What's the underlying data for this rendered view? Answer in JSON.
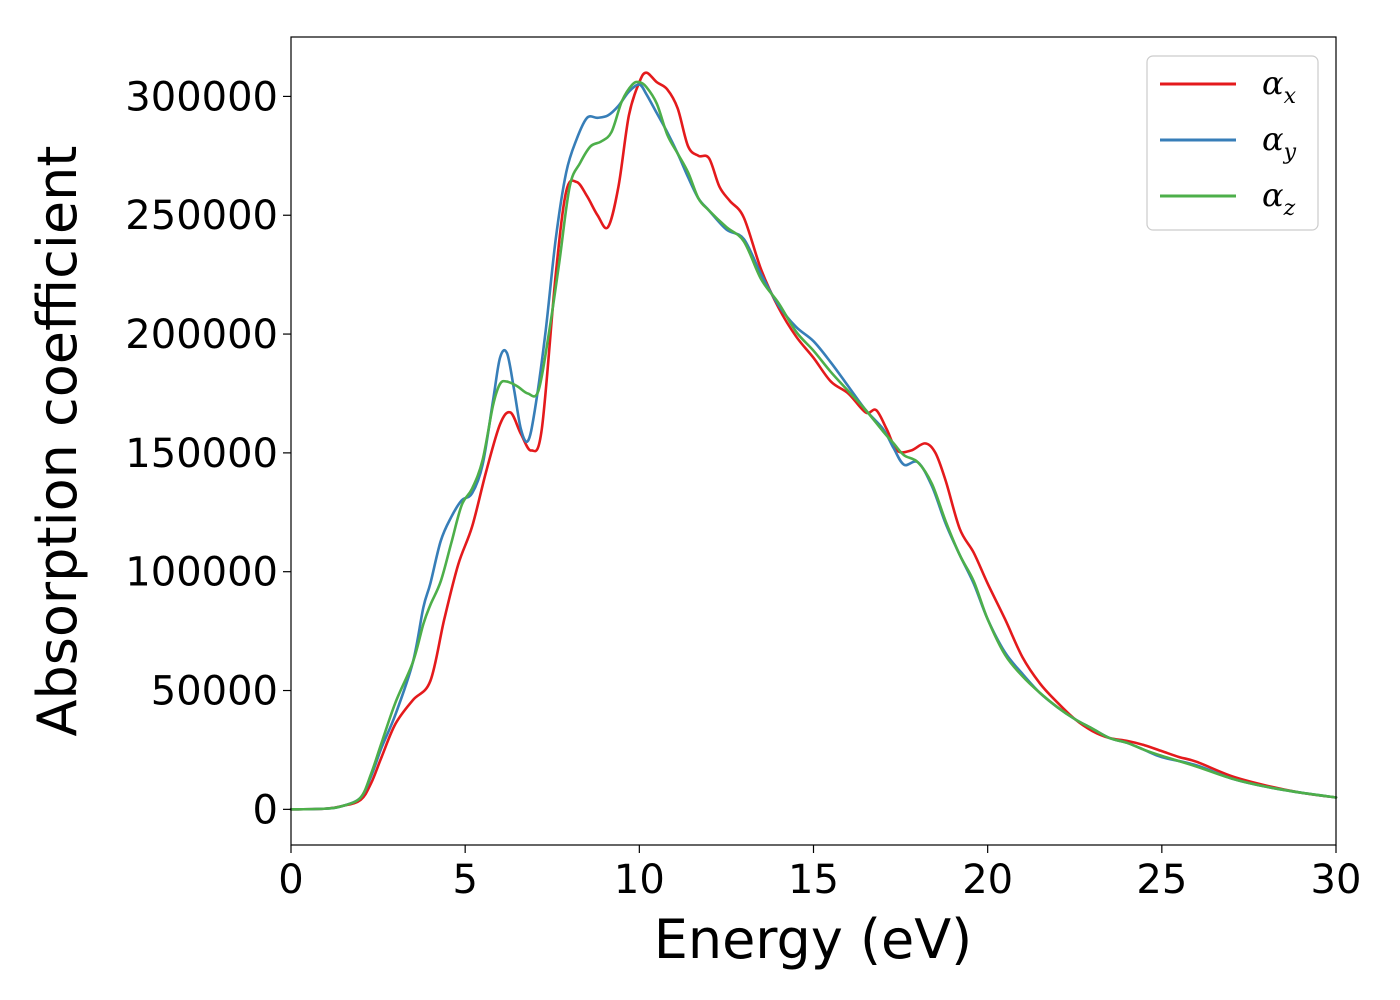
{
  "chart_data": {
    "type": "line",
    "xlabel": "Energy (eV)",
    "ylabel": "Absorption coefficient",
    "xlim": [
      0,
      30
    ],
    "ylim": [
      -15000,
      325000
    ],
    "xticks": [
      0,
      5,
      10,
      15,
      20,
      25,
      30
    ],
    "yticks": [
      0,
      50000,
      100000,
      150000,
      200000,
      250000,
      300000
    ],
    "xtick_labels": [
      "0",
      "5",
      "10",
      "15",
      "20",
      "25",
      "30"
    ],
    "ytick_labels": [
      "0",
      "50000",
      "100000",
      "150000",
      "200000",
      "250000",
      "300000"
    ],
    "grid": false,
    "legend_position": "top-right",
    "series": [
      {
        "name": "α_x",
        "legend_symbol": "α",
        "legend_subscript": "x",
        "color": "#e41a1c",
        "x": [
          0,
          1,
          1.5,
          2,
          2.3,
          2.6,
          3.0,
          3.5,
          4.0,
          4.4,
          4.8,
          5.2,
          5.6,
          6.0,
          6.3,
          6.6,
          6.9,
          7.2,
          7.6,
          7.9,
          8.2,
          8.5,
          8.8,
          9.1,
          9.4,
          9.7,
          10.0,
          10.2,
          10.5,
          10.8,
          11.1,
          11.4,
          11.7,
          12.0,
          12.3,
          12.6,
          13.0,
          13.5,
          14.0,
          14.5,
          15.0,
          15.5,
          16.0,
          16.5,
          16.8,
          17.1,
          17.4,
          17.8,
          18.2,
          18.5,
          18.8,
          19.2,
          19.6,
          20.0,
          20.5,
          21.0,
          21.5,
          22.0,
          22.5,
          23.0,
          23.5,
          24.0,
          24.5,
          25.0,
          25.5,
          26.0,
          27.0,
          28.0,
          29.0,
          30.0
        ],
        "y": [
          0,
          300,
          1500,
          4000,
          11000,
          22000,
          36000,
          46000,
          54000,
          80000,
          103000,
          119000,
          142000,
          162000,
          167000,
          158000,
          151000,
          160000,
          225000,
          260000,
          264000,
          258000,
          250000,
          245000,
          262000,
          292000,
          306000,
          310000,
          306000,
          303000,
          295000,
          279000,
          275000,
          274000,
          262000,
          256000,
          249000,
          227000,
          211000,
          199000,
          190000,
          180000,
          175000,
          167000,
          168000,
          160000,
          151000,
          151000,
          154000,
          150000,
          138000,
          118000,
          108000,
          95000,
          80000,
          64000,
          53000,
          45000,
          38000,
          33000,
          30000,
          28800,
          27000,
          24500,
          22000,
          20000,
          14000,
          10000,
          7000,
          5000
        ]
      },
      {
        "name": "α_y",
        "legend_symbol": "α",
        "legend_subscript": "y",
        "color": "#377eb8",
        "x": [
          0,
          1,
          1.5,
          2,
          2.3,
          2.6,
          3.0,
          3.5,
          3.8,
          4.0,
          4.3,
          4.6,
          4.9,
          5.2,
          5.5,
          5.8,
          6.0,
          6.2,
          6.4,
          6.6,
          6.8,
          7.0,
          7.3,
          7.6,
          7.9,
          8.2,
          8.5,
          8.8,
          9.1,
          9.4,
          9.7,
          10.0,
          10.2,
          10.5,
          10.8,
          11.1,
          11.4,
          11.7,
          12.0,
          12.5,
          13.0,
          13.5,
          14.0,
          14.5,
          15.0,
          15.5,
          16.0,
          16.5,
          17.0,
          17.3,
          17.6,
          18.0,
          18.4,
          18.8,
          19.2,
          19.6,
          20.0,
          20.5,
          21.0,
          21.5,
          22.0,
          22.5,
          23.0,
          23.5,
          24.0,
          24.5,
          25.0,
          26.0,
          27.0,
          28.0,
          29.0,
          30.0
        ],
        "y": [
          0,
          300,
          1500,
          5000,
          14000,
          26000,
          40000,
          62000,
          85000,
          95000,
          113000,
          123000,
          130000,
          133000,
          145000,
          172000,
          190000,
          192000,
          177000,
          160000,
          155000,
          168000,
          200000,
          240000,
          268000,
          282000,
          291000,
          291000,
          292000,
          296000,
          302000,
          305000,
          301000,
          293000,
          285000,
          276000,
          266000,
          257000,
          252000,
          244000,
          240000,
          225000,
          212000,
          203000,
          197000,
          188000,
          178000,
          168000,
          160000,
          152000,
          145000,
          146000,
          136000,
          120000,
          107000,
          95000,
          80000,
          66000,
          57000,
          49000,
          43000,
          38000,
          34000,
          30000,
          28000,
          25000,
          22000,
          18500,
          13000,
          9500,
          7000,
          5000
        ]
      },
      {
        "name": "α_z",
        "legend_symbol": "α",
        "legend_subscript": "z",
        "color": "#4daf4a",
        "x": [
          0,
          1,
          1.5,
          2,
          2.3,
          2.6,
          3.0,
          3.5,
          3.8,
          4.0,
          4.3,
          4.6,
          4.9,
          5.2,
          5.5,
          5.8,
          6.0,
          6.2,
          6.5,
          6.8,
          7.1,
          7.4,
          7.7,
          8.0,
          8.3,
          8.6,
          8.9,
          9.2,
          9.5,
          9.8,
          10.0,
          10.2,
          10.5,
          10.8,
          11.1,
          11.4,
          11.7,
          12.0,
          12.5,
          13.0,
          13.5,
          14.0,
          14.5,
          15.0,
          15.5,
          16.0,
          16.5,
          17.0,
          17.3,
          17.6,
          18.0,
          18.4,
          18.8,
          19.2,
          19.6,
          20.0,
          20.5,
          21.0,
          21.5,
          22.0,
          22.5,
          23.0,
          23.5,
          24.0,
          24.5,
          25.0,
          26.0,
          27.0,
          28.0,
          29.0,
          30.0
        ],
        "y": [
          0,
          300,
          1500,
          5000,
          15000,
          28000,
          45000,
          62000,
          78000,
          86000,
          96000,
          112000,
          128000,
          135000,
          147000,
          170000,
          179000,
          180000,
          178000,
          175000,
          176000,
          200000,
          230000,
          262000,
          272000,
          279000,
          281000,
          285000,
          298000,
          305000,
          306000,
          304000,
          297000,
          284000,
          276000,
          268000,
          257000,
          252000,
          245000,
          239000,
          223000,
          213000,
          201000,
          193000,
          184000,
          176000,
          168000,
          159000,
          154000,
          149000,
          146000,
          137000,
          121000,
          107000,
          96000,
          80000,
          65000,
          56000,
          49000,
          43000,
          38000,
          34000,
          30000,
          28000,
          25000,
          22500,
          18000,
          13000,
          9500,
          7000,
          5000
        ]
      }
    ]
  }
}
